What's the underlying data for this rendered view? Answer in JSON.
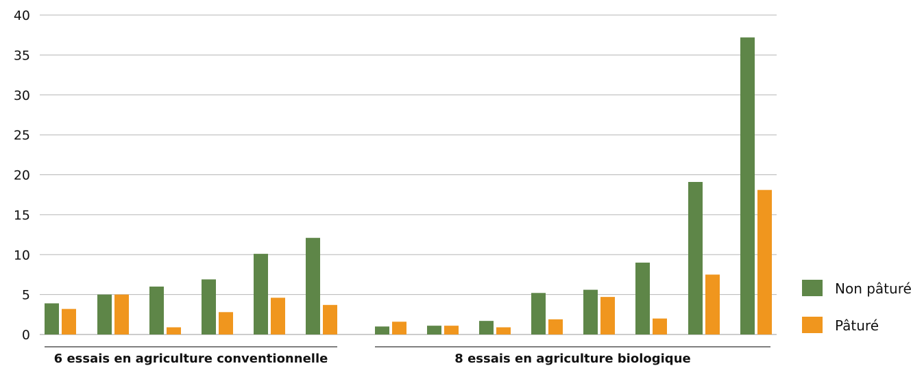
{
  "chart_data": {
    "type": "bar",
    "ylim": [
      0,
      40
    ],
    "yticks": [
      0,
      5,
      10,
      15,
      20,
      25,
      30,
      35,
      40
    ],
    "grid": true,
    "legend_position": "right",
    "groups": [
      {
        "label": "6 essais en agriculture conventionnelle",
        "count": 6
      },
      {
        "label": "8 essais en agriculture biologique",
        "count": 8
      }
    ],
    "series": [
      {
        "name": "Non pâturé",
        "color": "#5e8648",
        "values": [
          3.9,
          5.0,
          6.0,
          6.9,
          10.1,
          12.1,
          1.0,
          1.1,
          1.7,
          5.2,
          5.6,
          9.0,
          19.1,
          37.2
        ]
      },
      {
        "name": "Pâturé",
        "color": "#f0961e",
        "values": [
          3.2,
          5.0,
          0.9,
          2.8,
          4.6,
          3.7,
          1.6,
          1.1,
          0.9,
          1.9,
          4.7,
          2.0,
          7.5,
          18.1
        ]
      }
    ]
  }
}
